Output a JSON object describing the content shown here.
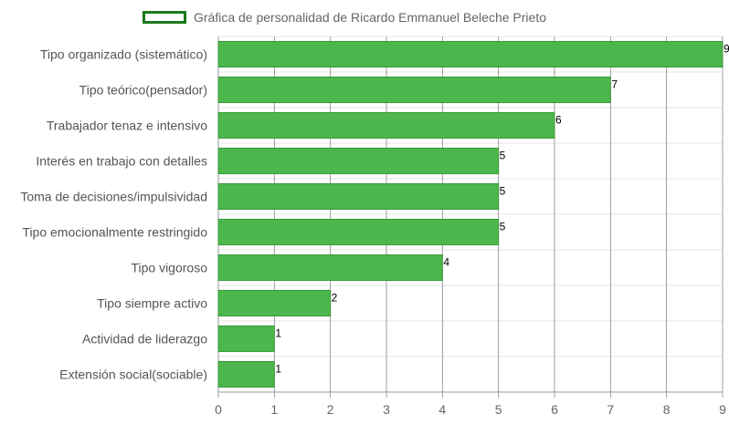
{
  "chart_data": {
    "type": "bar",
    "orientation": "horizontal",
    "categories": [
      "Tipo organizado (sistemático)",
      "Tipo teórico(pensador)",
      "Trabajador tenaz e intensivo",
      "Interés en trabajo con detalles",
      "Toma de decisiones/impulsividad",
      "Tipo emocionalmente restringido",
      "Tipo vigoroso",
      "Tipo siempre activo",
      "Actividad de liderazgo",
      "Extensión social(sociable)"
    ],
    "series": [
      {
        "name": "Gráfica de personalidad de Ricardo Emmanuel Beleche Prieto",
        "values": [
          9,
          7,
          6,
          5,
          5,
          5,
          4,
          2,
          1,
          1
        ]
      }
    ],
    "xlim": [
      0,
      9
    ],
    "x_ticks": [
      "0",
      "1",
      "2",
      "3",
      "4",
      "5",
      "6",
      "7",
      "8",
      "9"
    ],
    "grid": true,
    "legend_position": "top",
    "data_labels": true,
    "colors": {
      "bar_fill": "#4db64d",
      "bar_stroke": "#3a9a3a",
      "legend_border": "#1a7a1a"
    }
  }
}
